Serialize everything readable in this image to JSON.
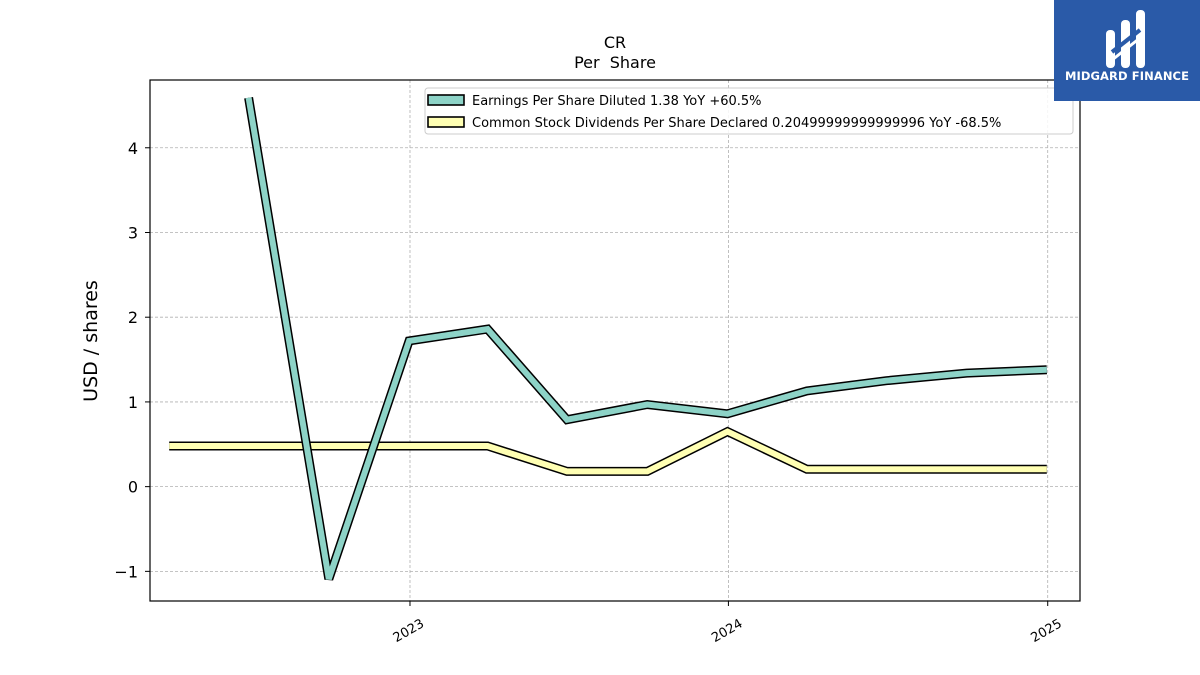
{
  "logo": {
    "text": "MIDGARD FINANCE",
    "color": "#2a5aa8"
  },
  "chart_data": {
    "type": "line",
    "title": "CR",
    "subtitle": "Per  Share",
    "xlabel": "",
    "ylabel": "USD / shares",
    "x_ticks": [
      "2023",
      "2024",
      "2025"
    ],
    "y_ticks": [
      "−1",
      "0",
      "1",
      "2",
      "3",
      "4"
    ],
    "xlim": [
      "2022-03-09",
      "2025-02-07"
    ],
    "ylim": [
      -1.35,
      4.8
    ],
    "grid": true,
    "legend_position": "top-center",
    "series": [
      {
        "name": "Earnings Per Share Diluted  1.38 YoY +60.5%",
        "color": "#8dd3c7",
        "x": [
          "2022-06-30",
          "2022-09-30",
          "2022-12-31",
          "2023-03-31",
          "2023-06-30",
          "2023-09-30",
          "2023-12-31",
          "2024-03-31",
          "2024-06-30",
          "2024-09-30",
          "2024-12-31"
        ],
        "values": [
          4.59,
          -1.09,
          1.72,
          1.86,
          0.79,
          0.97,
          0.86,
          1.13,
          1.25,
          1.34,
          1.38
        ]
      },
      {
        "name": "Common Stock Dividends Per Share Declared  0.20499999999999996 YoY -68.5%",
        "color": "#ffffb3",
        "x": [
          "2022-03-31",
          "2022-06-30",
          "2022-09-30",
          "2022-12-31",
          "2023-03-31",
          "2023-06-30",
          "2023-09-30",
          "2023-12-31",
          "2024-03-31",
          "2024-06-30",
          "2024-09-30",
          "2024-12-31"
        ],
        "values": [
          0.48,
          0.48,
          0.48,
          0.48,
          0.48,
          0.18,
          0.18,
          0.65,
          0.205,
          0.205,
          0.205,
          0.205
        ]
      }
    ]
  }
}
